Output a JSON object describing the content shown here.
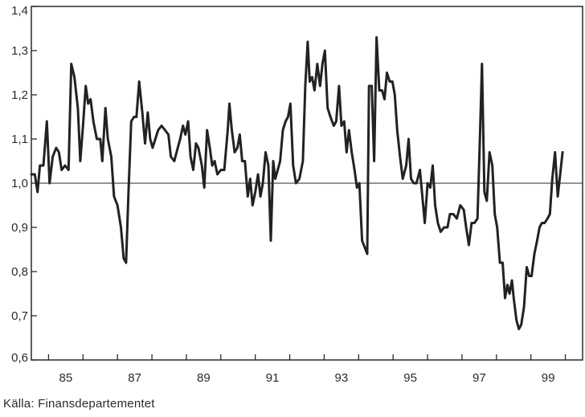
{
  "chart_data": {
    "type": "line",
    "title": "",
    "xlabel": "",
    "ylabel": "",
    "ylim": [
      0.6,
      1.4
    ],
    "y_ticks": [
      "1,4",
      "1,3",
      "1,2",
      "1,1",
      "1,0",
      "0,9",
      "0,8",
      "0,7",
      "0,6"
    ],
    "y_tick_values": [
      1.4,
      1.3,
      1.2,
      1.1,
      1.0,
      0.9,
      0.8,
      0.7,
      0.6
    ],
    "xlim": [
      1984.5,
      2000.5
    ],
    "x_ticks": [
      "85",
      "87",
      "89",
      "91",
      "93",
      "95",
      "97",
      "99"
    ],
    "x_tick_values": [
      1985,
      1987,
      1989,
      1991,
      1993,
      1995,
      1997,
      1999
    ],
    "reference_line": 1.0,
    "grid": false,
    "line_color": "#222222",
    "series": [
      {
        "points": [
          [
            1984.5,
            1.02
          ],
          [
            1984.6,
            1.02
          ],
          [
            1984.68,
            0.98
          ],
          [
            1984.75,
            1.04
          ],
          [
            1984.85,
            1.04
          ],
          [
            1984.95,
            1.14
          ],
          [
            1985.03,
            1.0
          ],
          [
            1985.12,
            1.06
          ],
          [
            1985.22,
            1.08
          ],
          [
            1985.3,
            1.07
          ],
          [
            1985.38,
            1.03
          ],
          [
            1985.48,
            1.04
          ],
          [
            1985.58,
            1.03
          ],
          [
            1985.66,
            1.27
          ],
          [
            1985.75,
            1.24
          ],
          [
            1985.85,
            1.17
          ],
          [
            1985.92,
            1.05
          ],
          [
            1986.0,
            1.13
          ],
          [
            1986.08,
            1.22
          ],
          [
            1986.15,
            1.18
          ],
          [
            1986.22,
            1.19
          ],
          [
            1986.3,
            1.14
          ],
          [
            1986.4,
            1.1
          ],
          [
            1986.5,
            1.1
          ],
          [
            1986.56,
            1.05
          ],
          [
            1986.65,
            1.17
          ],
          [
            1986.72,
            1.1
          ],
          [
            1986.82,
            1.06
          ],
          [
            1986.9,
            0.97
          ],
          [
            1987.0,
            0.95
          ],
          [
            1987.1,
            0.9
          ],
          [
            1987.18,
            0.83
          ],
          [
            1987.25,
            0.82
          ],
          [
            1987.32,
            0.98
          ],
          [
            1987.4,
            1.14
          ],
          [
            1987.48,
            1.15
          ],
          [
            1987.55,
            1.15
          ],
          [
            1987.63,
            1.23
          ],
          [
            1987.72,
            1.16
          ],
          [
            1987.8,
            1.09
          ],
          [
            1987.88,
            1.16
          ],
          [
            1987.95,
            1.1
          ],
          [
            1988.02,
            1.08
          ],
          [
            1988.1,
            1.1
          ],
          [
            1988.18,
            1.12
          ],
          [
            1988.28,
            1.13
          ],
          [
            1988.38,
            1.12
          ],
          [
            1988.48,
            1.11
          ],
          [
            1988.55,
            1.06
          ],
          [
            1988.65,
            1.05
          ],
          [
            1988.75,
            1.08
          ],
          [
            1988.82,
            1.1
          ],
          [
            1988.9,
            1.13
          ],
          [
            1988.97,
            1.11
          ],
          [
            1989.05,
            1.14
          ],
          [
            1989.12,
            1.06
          ],
          [
            1989.2,
            1.03
          ],
          [
            1989.28,
            1.09
          ],
          [
            1989.35,
            1.08
          ],
          [
            1989.45,
            1.04
          ],
          [
            1989.52,
            0.99
          ],
          [
            1989.6,
            1.12
          ],
          [
            1989.68,
            1.08
          ],
          [
            1989.75,
            1.04
          ],
          [
            1989.82,
            1.05
          ],
          [
            1989.9,
            1.02
          ],
          [
            1990.0,
            1.03
          ],
          [
            1990.1,
            1.03
          ],
          [
            1990.2,
            1.12
          ],
          [
            1990.25,
            1.18
          ],
          [
            1990.32,
            1.12
          ],
          [
            1990.4,
            1.07
          ],
          [
            1990.48,
            1.08
          ],
          [
            1990.55,
            1.11
          ],
          [
            1990.62,
            1.05
          ],
          [
            1990.7,
            1.05
          ],
          [
            1990.78,
            0.97
          ],
          [
            1990.85,
            1.01
          ],
          [
            1990.92,
            0.95
          ],
          [
            1991.0,
            0.98
          ],
          [
            1991.08,
            1.02
          ],
          [
            1991.15,
            0.97
          ],
          [
            1991.22,
            1.0
          ],
          [
            1991.3,
            1.07
          ],
          [
            1991.38,
            1.04
          ],
          [
            1991.45,
            0.87
          ],
          [
            1991.52,
            1.05
          ],
          [
            1991.58,
            1.01
          ],
          [
            1991.65,
            1.03
          ],
          [
            1991.72,
            1.05
          ],
          [
            1991.8,
            1.12
          ],
          [
            1991.88,
            1.14
          ],
          [
            1991.95,
            1.15
          ],
          [
            1992.02,
            1.18
          ],
          [
            1992.1,
            1.04
          ],
          [
            1992.18,
            1.0
          ],
          [
            1992.28,
            1.01
          ],
          [
            1992.38,
            1.05
          ],
          [
            1992.45,
            1.22
          ],
          [
            1992.52,
            1.32
          ],
          [
            1992.58,
            1.23
          ],
          [
            1992.65,
            1.24
          ],
          [
            1992.72,
            1.21
          ],
          [
            1992.8,
            1.27
          ],
          [
            1992.88,
            1.22
          ],
          [
            1992.95,
            1.27
          ],
          [
            1993.02,
            1.3
          ],
          [
            1993.1,
            1.17
          ],
          [
            1993.18,
            1.15
          ],
          [
            1993.28,
            1.13
          ],
          [
            1993.35,
            1.14
          ],
          [
            1993.43,
            1.22
          ],
          [
            1993.5,
            1.13
          ],
          [
            1993.58,
            1.14
          ],
          [
            1993.65,
            1.07
          ],
          [
            1993.72,
            1.12
          ],
          [
            1993.8,
            1.07
          ],
          [
            1993.88,
            1.03
          ],
          [
            1993.95,
            0.99
          ],
          [
            1994.02,
            1.0
          ],
          [
            1994.1,
            0.87
          ],
          [
            1994.2,
            0.85
          ],
          [
            1994.25,
            0.84
          ],
          [
            1994.3,
            1.22
          ],
          [
            1994.38,
            1.22
          ],
          [
            1994.45,
            1.05
          ],
          [
            1994.52,
            1.33
          ],
          [
            1994.6,
            1.21
          ],
          [
            1994.68,
            1.21
          ],
          [
            1994.75,
            1.19
          ],
          [
            1994.82,
            1.25
          ],
          [
            1994.9,
            1.23
          ],
          [
            1994.98,
            1.23
          ],
          [
            1995.05,
            1.2
          ],
          [
            1995.12,
            1.12
          ],
          [
            1995.2,
            1.06
          ],
          [
            1995.28,
            1.01
          ],
          [
            1995.38,
            1.04
          ],
          [
            1995.45,
            1.1
          ],
          [
            1995.52,
            1.01
          ],
          [
            1995.6,
            1.0
          ],
          [
            1995.68,
            1.0
          ],
          [
            1995.78,
            1.03
          ],
          [
            1995.85,
            0.97
          ],
          [
            1995.92,
            0.91
          ],
          [
            1996.0,
            1.0
          ],
          [
            1996.08,
            0.99
          ],
          [
            1996.15,
            1.04
          ],
          [
            1996.22,
            0.95
          ],
          [
            1996.3,
            0.91
          ],
          [
            1996.38,
            0.89
          ],
          [
            1996.48,
            0.9
          ],
          [
            1996.58,
            0.9
          ],
          [
            1996.65,
            0.93
          ],
          [
            1996.75,
            0.93
          ],
          [
            1996.85,
            0.92
          ],
          [
            1996.95,
            0.95
          ],
          [
            1997.05,
            0.94
          ],
          [
            1997.12,
            0.9
          ],
          [
            1997.2,
            0.86
          ],
          [
            1997.28,
            0.91
          ],
          [
            1997.36,
            0.91
          ],
          [
            1997.45,
            0.92
          ],
          [
            1997.52,
            1.1
          ],
          [
            1997.58,
            1.27
          ],
          [
            1997.65,
            0.98
          ],
          [
            1997.72,
            0.96
          ],
          [
            1997.8,
            1.07
          ],
          [
            1997.88,
            1.04
          ],
          [
            1997.95,
            0.93
          ],
          [
            1998.02,
            0.9
          ],
          [
            1998.1,
            0.82
          ],
          [
            1998.18,
            0.82
          ],
          [
            1998.25,
            0.74
          ],
          [
            1998.32,
            0.77
          ],
          [
            1998.38,
            0.75
          ],
          [
            1998.45,
            0.78
          ],
          [
            1998.5,
            0.74
          ],
          [
            1998.58,
            0.69
          ],
          [
            1998.65,
            0.67
          ],
          [
            1998.72,
            0.68
          ],
          [
            1998.8,
            0.72
          ],
          [
            1998.88,
            0.81
          ],
          [
            1998.95,
            0.79
          ],
          [
            1999.02,
            0.79
          ],
          [
            1999.1,
            0.84
          ],
          [
            1999.18,
            0.87
          ],
          [
            1999.25,
            0.9
          ],
          [
            1999.32,
            0.91
          ],
          [
            1999.4,
            0.91
          ],
          [
            1999.48,
            0.92
          ],
          [
            1999.55,
            0.93
          ],
          [
            1999.62,
            1.01
          ],
          [
            1999.7,
            1.07
          ],
          [
            1999.78,
            0.97
          ],
          [
            1999.85,
            1.02
          ],
          [
            1999.92,
            1.07
          ]
        ]
      }
    ]
  },
  "source_note": "Källa: Finansdepartementet"
}
